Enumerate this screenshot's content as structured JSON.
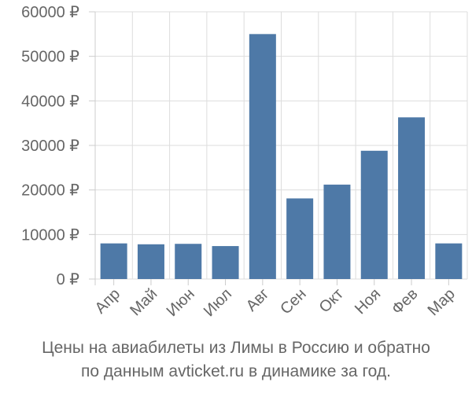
{
  "chart_data": {
    "type": "bar",
    "categories": [
      "Апр",
      "Май",
      "Июн",
      "Июл",
      "Авг",
      "Сен",
      "Окт",
      "Ноя",
      "Фев",
      "Мар"
    ],
    "values": [
      8000,
      7800,
      7900,
      7400,
      55000,
      18100,
      21200,
      28800,
      36300,
      8000
    ],
    "ylim": [
      0,
      60000
    ],
    "yticks": [
      0,
      10000,
      20000,
      30000,
      40000,
      50000,
      60000
    ],
    "ytick_labels": [
      "0 ₽",
      "10000 ₽",
      "20000 ₽",
      "30000 ₽",
      "40000 ₽",
      "50000 ₽",
      "60000 ₽"
    ],
    "grid": true,
    "bar_color": "#4e79a7",
    "caption_line1": "Цены на авиабилеты из Лимы в Россию и обратно",
    "caption_line2": "по данным avticket.ru в динамике за год."
  }
}
